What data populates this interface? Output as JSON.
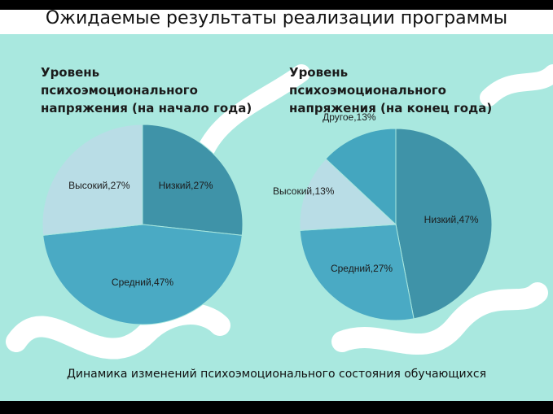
{
  "title": "Ожидаемые результаты реализации программы",
  "caption": "Динамика изменений психоэмоционального состояния обучающихся",
  "chart_data": [
    {
      "type": "pie",
      "title": "Уровень психоэмоционального напряжения (на начало года)",
      "values": [
        27,
        47,
        27
      ],
      "value_labels": [
        "Низкий,27%",
        "Средний,47%",
        "Высокий,27%"
      ],
      "colors": [
        "#3f93a8",
        "#4aaac4",
        "#b9dde6"
      ]
    },
    {
      "type": "pie",
      "title": "Уровень психоэмоционального напряжения (на конец года)",
      "values": [
        47,
        27,
        13,
        13
      ],
      "value_labels": [
        "Низкий,47%",
        "Средний,27%",
        "Высокий,13%",
        "Другое,13%"
      ],
      "colors": [
        "#3f93a8",
        "#4aaac4",
        "#b9dde6",
        "#44a6bf"
      ]
    }
  ]
}
